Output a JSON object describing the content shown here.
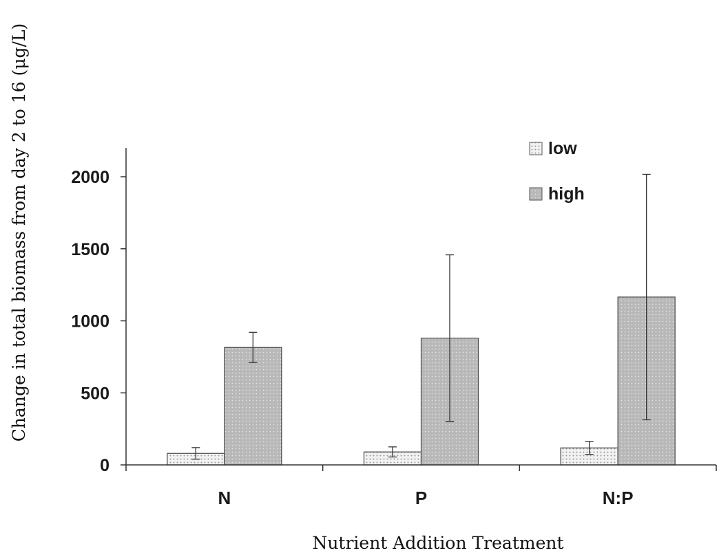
{
  "chart_data": {
    "type": "bar",
    "title": "",
    "xlabel": "Nutrient Addition Treatment",
    "ylabel": "Change in total biomass from day 2 to 16 (μg/L)",
    "categories": [
      "N",
      "P",
      "N:P"
    ],
    "ylim": [
      0,
      2200
    ],
    "yticks": [
      0,
      500,
      1000,
      1500,
      2000
    ],
    "grid": false,
    "legend": "top-right",
    "series": [
      {
        "name": "low",
        "values": [
          80,
          90,
          118
        ],
        "errors": [
          40,
          35,
          45
        ],
        "fill": "#f2f2f2",
        "dot": "#9a9a9a"
      },
      {
        "name": "high",
        "values": [
          815,
          880,
          1165
        ],
        "errors": [
          105,
          578,
          852
        ],
        "fill": "#b8b8b8",
        "dot": "#e2e2e2"
      }
    ]
  }
}
